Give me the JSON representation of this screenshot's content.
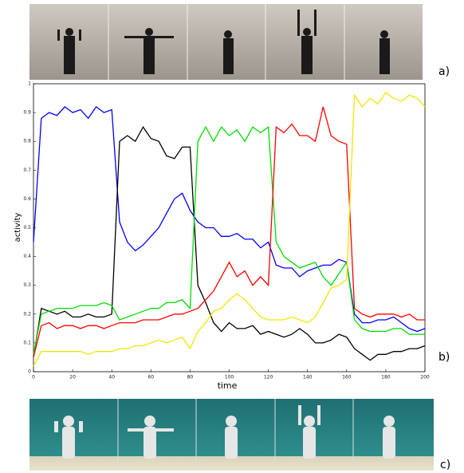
{
  "panel_labels": [
    "a)",
    "b)",
    "c)"
  ],
  "chart_data": {
    "type": "line",
    "x_label": "time",
    "y_label": "activity",
    "xlim": [
      0,
      200
    ],
    "ylim": [
      0,
      1
    ],
    "xticks": [
      0,
      20,
      40,
      60,
      80,
      100,
      120,
      140,
      160,
      180,
      200
    ],
    "yticks": [
      0,
      0.1,
      0.2,
      0.3,
      0.4,
      0.5,
      0.6,
      0.7,
      0.8,
      0.9,
      1
    ],
    "x": [
      0,
      4,
      8,
      12,
      16,
      20,
      24,
      28,
      32,
      36,
      40,
      44,
      48,
      52,
      56,
      60,
      64,
      68,
      72,
      76,
      80,
      84,
      88,
      92,
      96,
      100,
      104,
      108,
      112,
      116,
      120,
      124,
      128,
      132,
      136,
      140,
      144,
      148,
      152,
      156,
      160,
      164,
      168,
      172,
      176,
      180,
      184,
      188,
      192,
      196,
      200
    ],
    "series": [
      {
        "color": "#0000ff",
        "values": [
          0.45,
          0.88,
          0.9,
          0.89,
          0.92,
          0.9,
          0.91,
          0.88,
          0.92,
          0.9,
          0.91,
          0.52,
          0.45,
          0.42,
          0.44,
          0.47,
          0.5,
          0.55,
          0.6,
          0.62,
          0.56,
          0.52,
          0.5,
          0.5,
          0.47,
          0.47,
          0.48,
          0.46,
          0.46,
          0.43,
          0.45,
          0.37,
          0.36,
          0.36,
          0.33,
          0.35,
          0.36,
          0.37,
          0.37,
          0.39,
          0.38,
          0.2,
          0.17,
          0.17,
          0.18,
          0.18,
          0.19,
          0.17,
          0.15,
          0.14,
          0.15
        ]
      },
      {
        "color": "#000000",
        "values": [
          0.05,
          0.22,
          0.21,
          0.2,
          0.21,
          0.19,
          0.19,
          0.2,
          0.19,
          0.19,
          0.2,
          0.8,
          0.82,
          0.8,
          0.85,
          0.81,
          0.8,
          0.75,
          0.74,
          0.78,
          0.78,
          0.3,
          0.24,
          0.17,
          0.14,
          0.17,
          0.15,
          0.15,
          0.16,
          0.13,
          0.14,
          0.13,
          0.12,
          0.13,
          0.15,
          0.13,
          0.1,
          0.1,
          0.11,
          0.13,
          0.12,
          0.08,
          0.06,
          0.04,
          0.06,
          0.06,
          0.07,
          0.07,
          0.08,
          0.08,
          0.09
        ]
      },
      {
        "color": "#00dd00",
        "values": [
          0.06,
          0.2,
          0.21,
          0.22,
          0.22,
          0.22,
          0.23,
          0.23,
          0.23,
          0.24,
          0.23,
          0.18,
          0.19,
          0.2,
          0.21,
          0.22,
          0.22,
          0.24,
          0.24,
          0.25,
          0.22,
          0.8,
          0.85,
          0.8,
          0.85,
          0.82,
          0.84,
          0.8,
          0.85,
          0.83,
          0.85,
          0.45,
          0.4,
          0.38,
          0.36,
          0.37,
          0.38,
          0.33,
          0.3,
          0.34,
          0.38,
          0.18,
          0.15,
          0.14,
          0.14,
          0.14,
          0.15,
          0.15,
          0.13,
          0.13,
          0.13
        ]
      },
      {
        "color": "#ff0000",
        "values": [
          0.05,
          0.16,
          0.17,
          0.15,
          0.16,
          0.16,
          0.15,
          0.16,
          0.16,
          0.15,
          0.16,
          0.17,
          0.17,
          0.17,
          0.18,
          0.18,
          0.18,
          0.19,
          0.2,
          0.2,
          0.21,
          0.22,
          0.25,
          0.28,
          0.33,
          0.38,
          0.33,
          0.35,
          0.3,
          0.33,
          0.3,
          0.85,
          0.83,
          0.86,
          0.82,
          0.82,
          0.8,
          0.92,
          0.82,
          0.8,
          0.79,
          0.22,
          0.2,
          0.19,
          0.2,
          0.2,
          0.2,
          0.19,
          0.2,
          0.18,
          0.18
        ]
      },
      {
        "color": "#f2e600",
        "values": [
          0.02,
          0.07,
          0.07,
          0.07,
          0.07,
          0.07,
          0.07,
          0.06,
          0.07,
          0.07,
          0.07,
          0.08,
          0.08,
          0.09,
          0.09,
          0.1,
          0.11,
          0.1,
          0.11,
          0.12,
          0.08,
          0.14,
          0.17,
          0.21,
          0.22,
          0.25,
          0.27,
          0.25,
          0.22,
          0.19,
          0.18,
          0.18,
          0.18,
          0.19,
          0.18,
          0.17,
          0.19,
          0.24,
          0.29,
          0.3,
          0.32,
          0.96,
          0.92,
          0.95,
          0.93,
          0.97,
          0.95,
          0.94,
          0.96,
          0.95,
          0.92
        ]
      }
    ]
  }
}
